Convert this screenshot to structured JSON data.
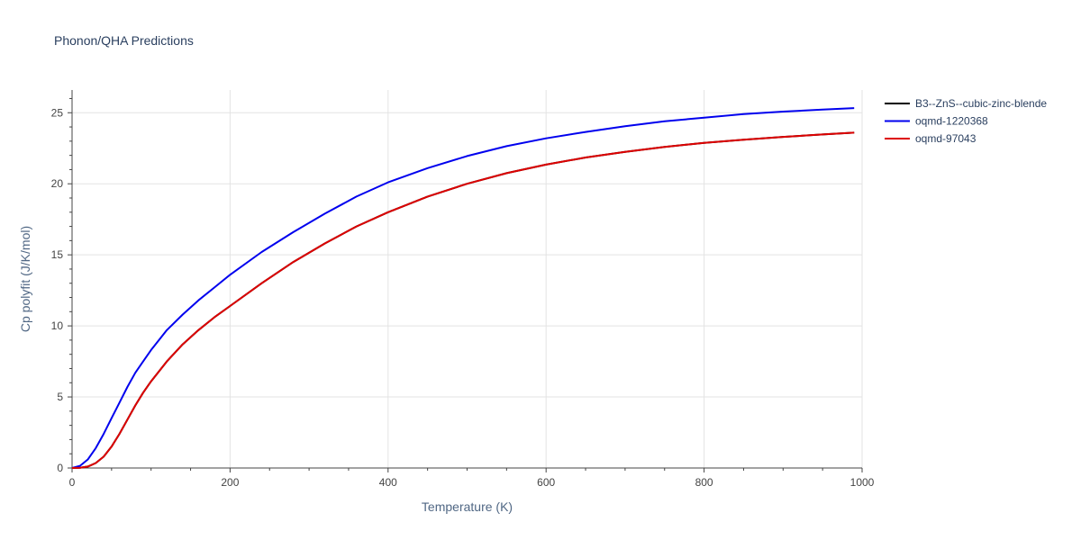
{
  "chart_data": {
    "type": "line",
    "title": "Phonon/QHA Predictions",
    "xlabel": "Temperature (K)",
    "ylabel": "Cp polyfit (J/K/mol)",
    "xlim": [
      0,
      1000
    ],
    "ylim": [
      0,
      26.6
    ],
    "xticks": [
      0,
      200,
      400,
      600,
      800,
      1000
    ],
    "xtick_labels": [
      "0",
      "200",
      "400",
      "600",
      "800",
      "1000"
    ],
    "yticks": [
      0,
      5,
      10,
      15,
      20,
      25
    ],
    "ytick_labels": [
      "0",
      "5",
      "10",
      "15",
      "20",
      "25"
    ],
    "grid": true,
    "legend_position": "top-right-outside",
    "series": [
      {
        "name": "B3--ZnS--cubic-zinc-blende",
        "color": "#000000",
        "x": [
          0,
          10,
          20,
          30,
          40,
          50,
          60,
          70,
          80,
          90,
          100,
          120,
          140,
          160,
          180,
          200,
          240,
          280,
          320,
          360,
          400,
          450,
          500,
          550,
          600,
          650,
          700,
          750,
          800,
          850,
          900,
          950,
          990
        ],
        "y": [
          0,
          0.02,
          0.1,
          0.35,
          0.8,
          1.5,
          2.4,
          3.4,
          4.4,
          5.3,
          6.1,
          7.5,
          8.7,
          9.7,
          10.6,
          11.4,
          13.0,
          14.5,
          15.8,
          17.0,
          18.0,
          19.1,
          20.0,
          20.75,
          21.35,
          21.85,
          22.25,
          22.6,
          22.88,
          23.1,
          23.3,
          23.47,
          23.6
        ]
      },
      {
        "name": "oqmd-1220368",
        "color": "#0000ee",
        "x": [
          0,
          10,
          20,
          30,
          40,
          50,
          60,
          70,
          80,
          90,
          100,
          120,
          140,
          160,
          180,
          200,
          240,
          280,
          320,
          360,
          400,
          450,
          500,
          550,
          600,
          650,
          700,
          750,
          800,
          850,
          900,
          950,
          990
        ],
        "y": [
          0,
          0.15,
          0.6,
          1.4,
          2.4,
          3.5,
          4.6,
          5.7,
          6.7,
          7.5,
          8.3,
          9.7,
          10.8,
          11.8,
          12.7,
          13.6,
          15.2,
          16.6,
          17.9,
          19.1,
          20.1,
          21.1,
          21.95,
          22.65,
          23.2,
          23.65,
          24.05,
          24.4,
          24.65,
          24.9,
          25.08,
          25.22,
          25.33
        ]
      },
      {
        "name": "oqmd-97043",
        "color": "#dd0000",
        "x": [
          0,
          10,
          20,
          30,
          40,
          50,
          60,
          70,
          80,
          90,
          100,
          120,
          140,
          160,
          180,
          200,
          240,
          280,
          320,
          360,
          400,
          450,
          500,
          550,
          600,
          650,
          700,
          750,
          800,
          850,
          900,
          950,
          990
        ],
        "y": [
          0,
          0.02,
          0.1,
          0.35,
          0.8,
          1.5,
          2.4,
          3.4,
          4.4,
          5.3,
          6.1,
          7.5,
          8.7,
          9.7,
          10.6,
          11.4,
          13.0,
          14.5,
          15.8,
          17.0,
          18.0,
          19.1,
          20.0,
          20.75,
          21.35,
          21.85,
          22.25,
          22.6,
          22.88,
          23.1,
          23.3,
          23.47,
          23.6
        ]
      }
    ]
  }
}
